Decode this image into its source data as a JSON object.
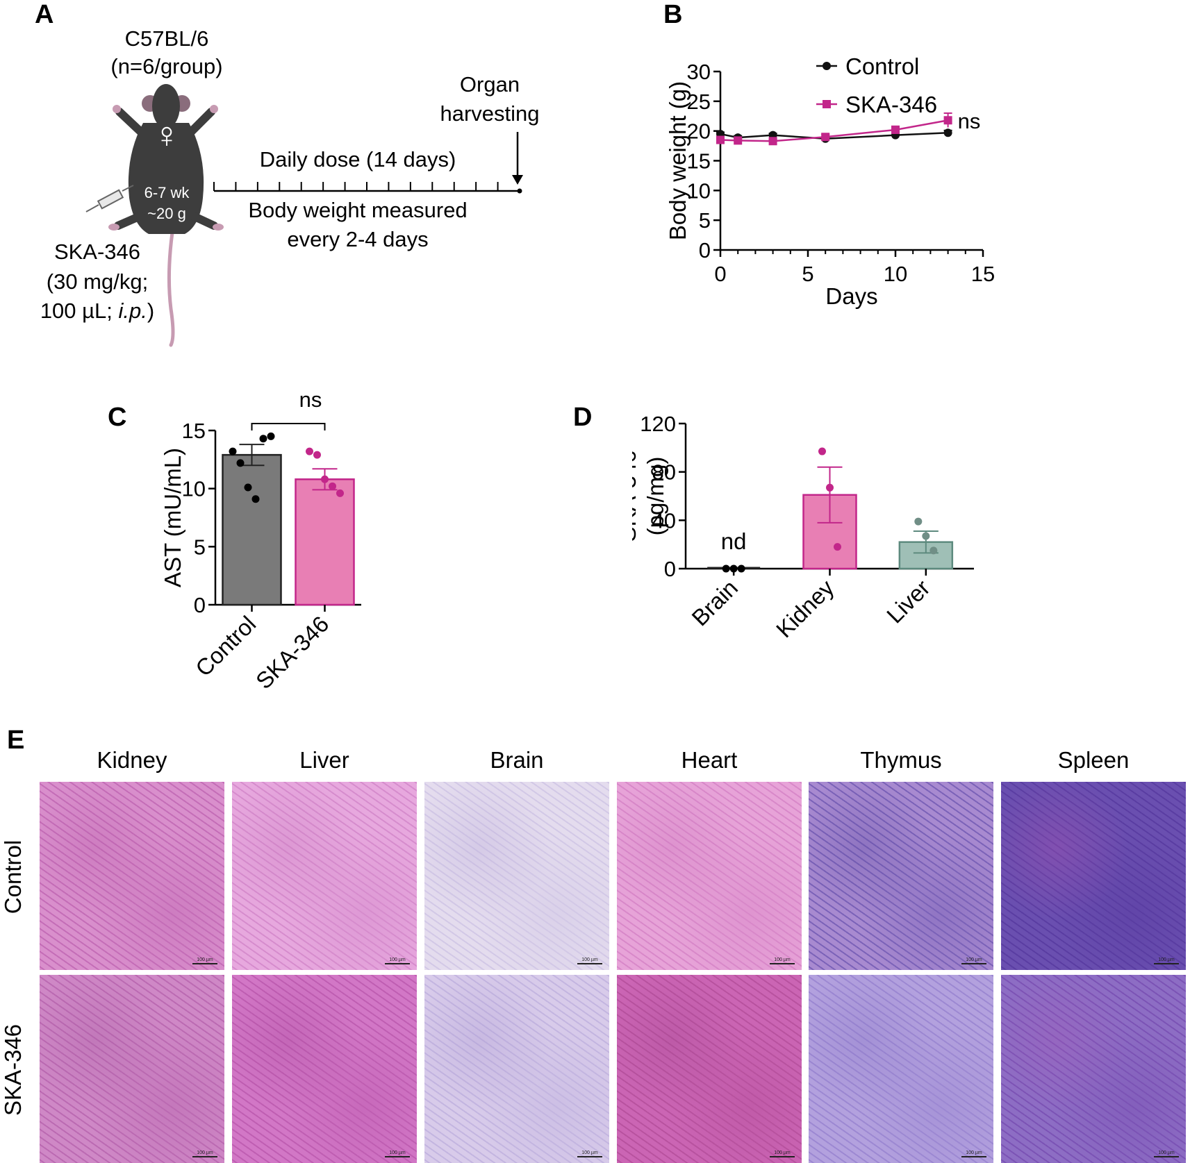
{
  "panels": {
    "a": {
      "letter": "A",
      "strain": "C57BL/6",
      "group_size": "(n=6/group)",
      "sex_symbol": "♀",
      "age": "6-7 wk",
      "weight": "~20 g",
      "timeline_top": "Daily dose (14 days)",
      "timeline_bottom_1": "Body weight measured",
      "timeline_bottom_2": "every 2-4 days",
      "endpoint_1": "Organ",
      "endpoint_2": "harvesting",
      "drug": "SKA-346",
      "dose_line_1": "(30 mg/kg;",
      "dose_line_2_prefix": "100 µL; ",
      "dose_line_2_route": "i.p.",
      "dose_line_2_suffix": ")",
      "tick_count": 14
    },
    "b": {
      "letter": "B"
    },
    "c": {
      "letter": "C"
    },
    "d": {
      "letter": "D"
    },
    "e": {
      "letter": "E",
      "columns": [
        "Kidney",
        "Liver",
        "Brain",
        "Heart",
        "Thymus",
        "Spleen"
      ],
      "rows": [
        "Control",
        "SKA-346"
      ],
      "scalebar_label": "100 µm"
    }
  },
  "chart_data": [
    {
      "id": "b",
      "type": "line",
      "xlabel": "Days",
      "ylabel": "Body weight (g)",
      "xlim": [
        0,
        15
      ],
      "ylim": [
        0,
        30
      ],
      "xticks": [
        0,
        5,
        10,
        15
      ],
      "yticks": [
        0,
        5,
        10,
        15,
        20,
        25,
        30
      ],
      "legend_position": "top-right",
      "annotation": "ns",
      "colors": {
        "Control": "#111111",
        "SKA-346": "#c2268a"
      },
      "series": [
        {
          "name": "Control",
          "x": [
            0,
            1,
            3,
            6,
            10,
            13
          ],
          "y": [
            19.5,
            18.9,
            19.3,
            18.7,
            19.3,
            19.7
          ],
          "err": [
            0.3,
            0.3,
            0.3,
            0.3,
            0.3,
            0.4
          ]
        },
        {
          "name": "SKA-346",
          "x": [
            0,
            1,
            3,
            6,
            10,
            13
          ],
          "y": [
            18.5,
            18.4,
            18.3,
            19.0,
            20.2,
            21.8
          ],
          "err": [
            0.3,
            0.3,
            0.3,
            0.4,
            0.6,
            1.2
          ]
        }
      ]
    },
    {
      "id": "c",
      "type": "bar",
      "ylabel": "AST (mU/mL)",
      "ylim": [
        0,
        15
      ],
      "yticks": [
        0,
        5,
        10,
        15
      ],
      "categories": [
        "Control",
        "SKA-346"
      ],
      "values": [
        12.9,
        10.8
      ],
      "sem": [
        0.9,
        0.9
      ],
      "points": [
        [
          13.2,
          12.2,
          10.1,
          9.1,
          14.3,
          14.5
        ],
        [
          13.2,
          12.9,
          10.8,
          10.2,
          9.6
        ]
      ],
      "fill_colors": [
        "#7a7a7a",
        "#e87fb4"
      ],
      "stroke_colors": [
        "#222222",
        "#c2268a"
      ],
      "point_colors": [
        "#000000",
        "#c2268a"
      ],
      "annotation": "ns"
    },
    {
      "id": "d",
      "type": "bar",
      "ylabel_line1": "SKA-346",
      "ylabel_line2": "(pg/mg)",
      "ylim": [
        0,
        120
      ],
      "yticks": [
        0,
        40,
        80,
        120
      ],
      "categories": [
        "Brain",
        "Kidney",
        "Liver"
      ],
      "values": [
        0,
        61,
        22
      ],
      "sem": [
        0,
        23,
        9
      ],
      "points": [
        [
          0,
          0,
          0
        ],
        [
          97,
          67,
          18
        ],
        [
          39,
          27,
          15
        ]
      ],
      "fill_colors": [
        "#ffffff",
        "#e87fb4",
        "#9fbfb6"
      ],
      "stroke_colors": [
        "#222222",
        "#c2268a",
        "#5d8a7e"
      ],
      "point_colors": [
        "#000000",
        "#c2268a",
        "#708e86"
      ],
      "annotation": "nd"
    }
  ]
}
